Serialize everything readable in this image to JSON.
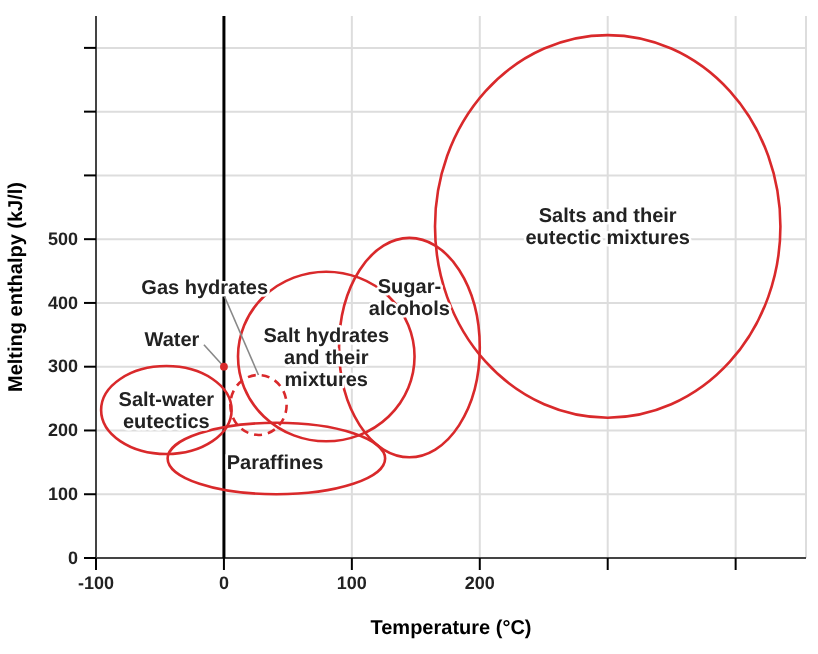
{
  "chart_data": {
    "type": "scatter",
    "xlabel": "Temperature (°C)",
    "ylabel": "Melting enthalpy (kJ/l)",
    "xlim": [
      -100,
      455
    ],
    "ylim": [
      0,
      850
    ],
    "xticks": [
      -100,
      0,
      100,
      200,
      {
        "value": 300,
        "label": null
      },
      {
        "value": 400,
        "label": null
      }
    ],
    "yticks": [
      0,
      100,
      200,
      300,
      400,
      500,
      {
        "value": 600,
        "label": null
      },
      {
        "value": 700,
        "label": null
      },
      {
        "value": 800,
        "label": null
      }
    ],
    "grid": true,
    "marker": "circle",
    "ref_lines": [
      {
        "axis": "x",
        "value": 0,
        "color": "#000000"
      }
    ],
    "series": [
      {
        "name": "Water",
        "color": "#d9292b",
        "x": [
          0
        ],
        "values": [
          300
        ]
      }
    ],
    "annotations": [
      "Salt-water eutectics",
      "Paraffines",
      "Gas hydrates",
      "Salt hydrates and their mixtures",
      "Sugar-alcohols",
      "Salts and their eutectic mixtures"
    ]
  }
}
